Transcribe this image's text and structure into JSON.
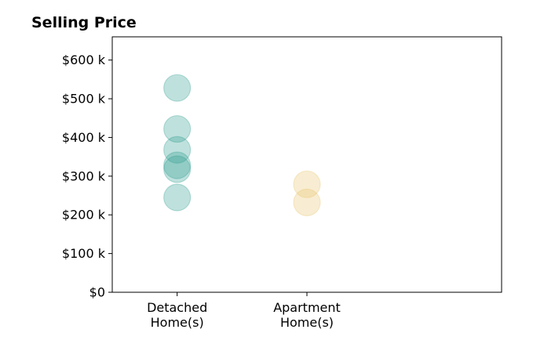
{
  "chart_data": {
    "type": "scatter",
    "title": "Selling Price",
    "xlabel": "",
    "ylabel": "",
    "categories": [
      "Detached\nHome(s)",
      "Apartment\nHome(s)"
    ],
    "xlim": [
      -0.5,
      2.5
    ],
    "ylim": [
      0,
      660
    ],
    "y_ticks": [
      0,
      100,
      200,
      300,
      400,
      500,
      600
    ],
    "y_tick_labels": [
      "$0",
      "$100 k",
      "$200 k",
      "$300 k",
      "$400 k",
      "$500 k",
      "$600 k"
    ],
    "grid": false,
    "series": [
      {
        "category": 0,
        "color": "#2a9d8f",
        "values": [
          528,
          422,
          368,
          328,
          318,
          245
        ]
      },
      {
        "category": 1,
        "color": "#e9c46a",
        "values": [
          279,
          232
        ]
      }
    ]
  }
}
